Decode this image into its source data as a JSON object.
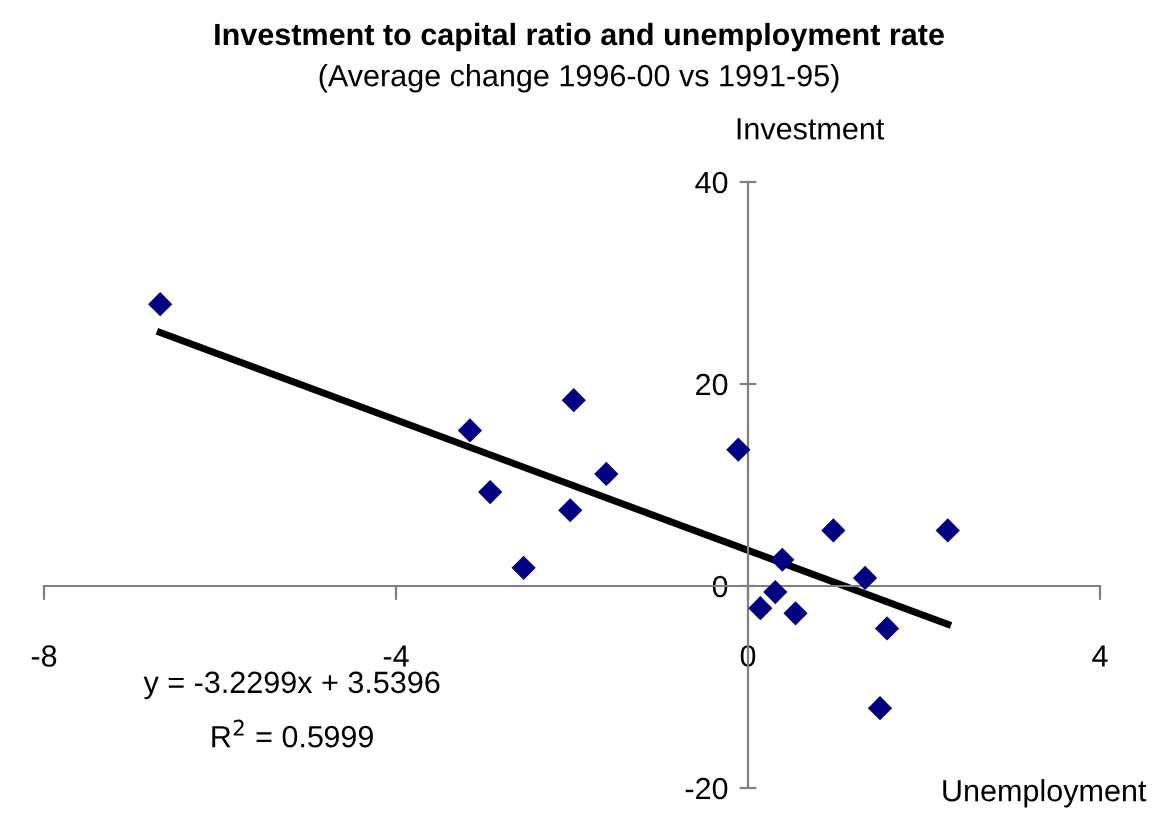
{
  "chart_data": {
    "type": "scatter",
    "title": "Investment to capital ratio and unemployment rate",
    "subtitle": "(Average change 1996-00 vs 1991-95)",
    "xlabel": "Unemployment",
    "ylabel": "Investment",
    "xlim": [
      -8,
      4
    ],
    "xticks": [
      -8,
      -4,
      0,
      4
    ],
    "ylim": [
      -20,
      40
    ],
    "yticks": [
      -20,
      0,
      20,
      40
    ],
    "grid": false,
    "legend": false,
    "marker": "diamond",
    "series": [
      {
        "color": "#000080",
        "x": [
          -6.68,
          -3.16,
          -1.98,
          -1.61,
          -2.93,
          -2.02,
          -2.55,
          -0.11,
          0.97,
          2.27,
          0.39,
          1.33,
          0.31,
          0.14,
          0.54,
          1.58,
          1.5
        ],
        "values": [
          27.9,
          15.4,
          18.4,
          11.1,
          9.3,
          7.5,
          1.8,
          13.5,
          5.5,
          5.5,
          2.6,
          0.8,
          -0.6,
          -2.2,
          -2.7,
          -4.2,
          -12.1
        ]
      },
      {
        "type": "line",
        "color": "#000000",
        "marker": "none",
        "line_style": "solid",
        "x": [
          -6.68,
          2.27
        ],
        "values": [
          25.1,
          -3.8
        ]
      }
    ],
    "annotations": [
      "y = -3.2299x + 3.5396",
      "R$^{2}$ = 0.5999"
    ]
  }
}
